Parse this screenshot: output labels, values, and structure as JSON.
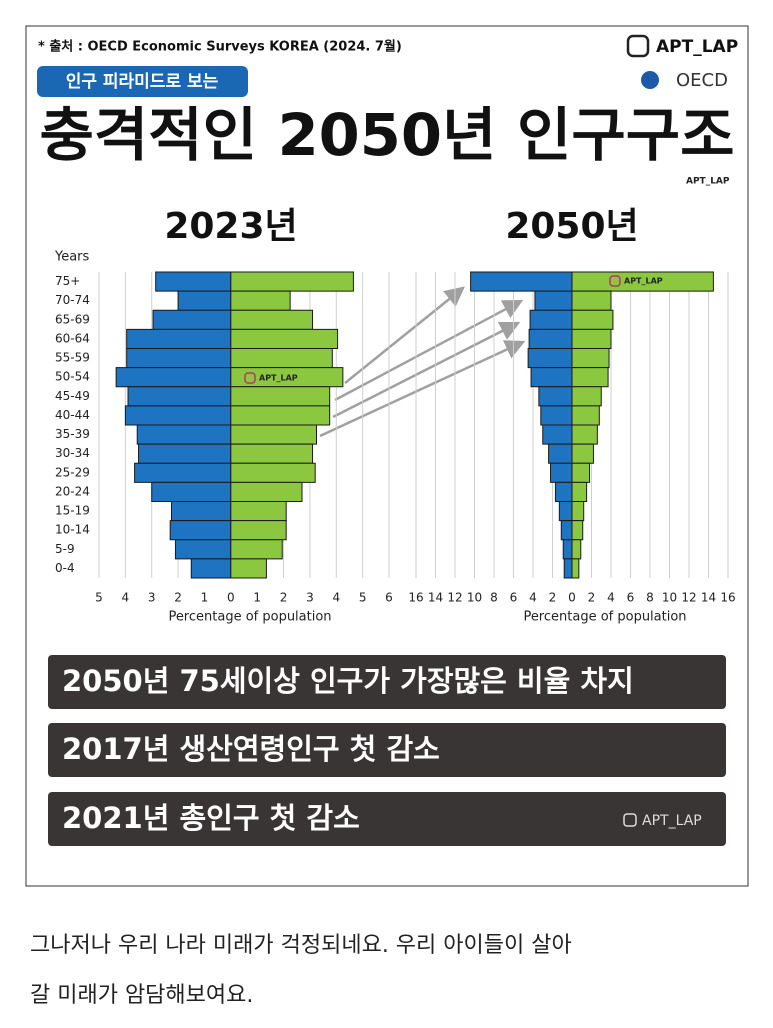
{
  "source": "* 출처 : OECD Economic Surveys KOREA (2024. 7월)",
  "badge": "인구 피라미드로 보는",
  "headline": "충격적인 2050년 인구구조",
  "logo": "OECD",
  "watermark": "APT_LAP",
  "chart_data": [
    {
      "type": "pyramid",
      "title": "2023년",
      "ylabel": "Years",
      "xlabel": "Percentage of population",
      "categories": [
        "75+",
        "70-74",
        "65-69",
        "60-64",
        "55-59",
        "50-54",
        "45-49",
        "40-44",
        "35-39",
        "30-34",
        "25-29",
        "20-24",
        "15-19",
        "10-14",
        "5-9",
        "0-4"
      ],
      "series": [
        {
          "color": "#1f74c2",
          "values": [
            -2.85,
            -2.0,
            -2.95,
            -3.95,
            -3.95,
            -4.35,
            -3.9,
            -4.0,
            -3.55,
            -3.5,
            -3.65,
            -3.0,
            -2.25,
            -2.3,
            -2.1,
            -1.5
          ]
        },
        {
          "color": "#8cc83f",
          "values": [
            4.65,
            2.25,
            3.1,
            4.05,
            3.85,
            4.25,
            3.75,
            3.75,
            3.25,
            3.1,
            3.2,
            2.7,
            2.1,
            2.1,
            1.95,
            1.35
          ]
        }
      ],
      "xlim": [
        -5,
        6
      ],
      "xticks": [
        {
          "value": -5,
          "label": "5"
        },
        {
          "value": -4,
          "label": "4"
        },
        {
          "value": -3,
          "label": "3"
        },
        {
          "value": -2,
          "label": "2"
        },
        {
          "value": -1,
          "label": "1"
        },
        0,
        1,
        2,
        3,
        4,
        5,
        6
      ],
      "grid": true
    },
    {
      "type": "pyramid",
      "title": "2050년",
      "xlabel": "Percentage of population",
      "categories": [
        null,
        null,
        null,
        null,
        null,
        null,
        null,
        null,
        null,
        null,
        null,
        null,
        null,
        null,
        null,
        null
      ],
      "series": [
        {
          "color": "#1f74c2",
          "values": [
            -10.4,
            -3.8,
            -4.3,
            -4.4,
            -4.5,
            -4.2,
            -3.4,
            -3.2,
            -3.0,
            -2.4,
            -2.2,
            -1.7,
            -1.3,
            -1.1,
            -0.9,
            -0.8
          ]
        },
        {
          "color": "#8cc83f",
          "values": [
            14.5,
            4.0,
            4.2,
            4.0,
            3.8,
            3.7,
            3.0,
            2.8,
            2.6,
            2.2,
            1.8,
            1.5,
            1.2,
            1.1,
            0.9,
            0.7
          ]
        }
      ],
      "xlim": [
        -16,
        16
      ],
      "xticks": [
        {
          "value": -16,
          "label": "16"
        },
        {
          "value": -14,
          "label": "14"
        },
        {
          "value": -12,
          "label": "12"
        },
        {
          "value": -10,
          "label": "10"
        },
        {
          "value": -8,
          "label": "8"
        },
        {
          "value": -6,
          "label": "6"
        },
        {
          "value": -4,
          "label": "4"
        },
        {
          "value": -2,
          "label": "2"
        },
        0,
        2,
        4,
        6,
        8,
        10,
        12,
        14,
        16
      ],
      "grid": true
    }
  ],
  "notes": [
    "2050년 75세이상 인구가 가장많은 비율 차지",
    "2017년 생산연령인구 첫 감소",
    "2021년 총인구 첫 감소"
  ],
  "caption": "그나저나 우리 나라 미래가 걱정되네요. 우리 아이들이 살아 갈 미래가 암담해보여요."
}
